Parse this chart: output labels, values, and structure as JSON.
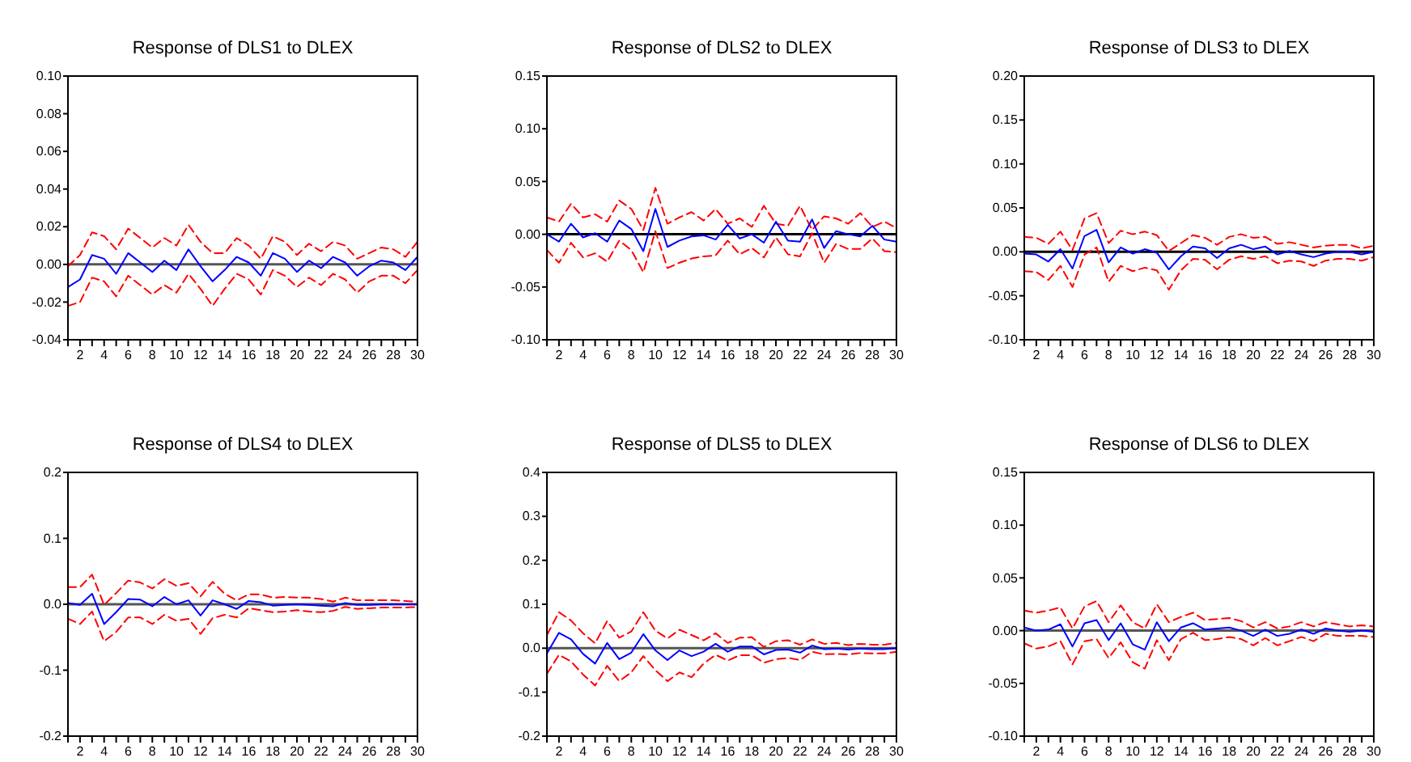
{
  "chart_data": [
    {
      "type": "line",
      "title": "Response of DLS1 to DLEX",
      "x": [
        1,
        2,
        3,
        4,
        5,
        6,
        7,
        8,
        9,
        10,
        11,
        12,
        13,
        14,
        15,
        16,
        17,
        18,
        19,
        20,
        21,
        22,
        23,
        24,
        25,
        26,
        27,
        28,
        29,
        30
      ],
      "xlim": [
        1,
        30
      ],
      "xticks": [
        {
          "value": 1,
          "label": null
        },
        2,
        {
          "value": 3,
          "label": null
        },
        4,
        {
          "value": 5,
          "label": null
        },
        6,
        {
          "value": 7,
          "label": null
        },
        8,
        {
          "value": 9,
          "label": null
        },
        10,
        {
          "value": 11,
          "label": null
        },
        12,
        {
          "value": 13,
          "label": null
        },
        14,
        {
          "value": 15,
          "label": null
        },
        16,
        {
          "value": 17,
          "label": null
        },
        18,
        {
          "value": 19,
          "label": null
        },
        20,
        {
          "value": 21,
          "label": null
        },
        22,
        {
          "value": 23,
          "label": null
        },
        24,
        {
          "value": 25,
          "label": null
        },
        26,
        {
          "value": 27,
          "label": null
        },
        28,
        {
          "value": 29,
          "label": null
        },
        30
      ],
      "ylim": [
        -0.04,
        0.1
      ],
      "yticks": [
        {
          "value": -0.04,
          "label": "-0.04"
        },
        {
          "value": -0.02,
          "label": "-0.02"
        },
        {
          "value": 0,
          "label": "0.00"
        },
        {
          "value": 0.02,
          "label": "0.02"
        },
        {
          "value": 0.04,
          "label": "0.04"
        },
        {
          "value": 0.06,
          "label": "0.06"
        },
        {
          "value": 0.08,
          "label": "0.08"
        },
        {
          "value": 0.1,
          "label": "0.10"
        }
      ],
      "ref_lines": [
        {
          "axis": "y",
          "value": 0,
          "color": "#555555"
        }
      ],
      "series": [
        {
          "color": "#ff0000",
          "line_style": "dashed",
          "values": [
            -0.001,
            0.005,
            0.017,
            0.015,
            0.008,
            0.019,
            0.014,
            0.009,
            0.014,
            0.01,
            0.021,
            0.012,
            0.006,
            0.006,
            0.014,
            0.01,
            0.003,
            0.015,
            0.012,
            0.005,
            0.011,
            0.007,
            0.012,
            0.01,
            0.003,
            0.006,
            0.009,
            0.008,
            0.004,
            0.012
          ]
        },
        {
          "color": "#ff0000",
          "line_style": "dashed",
          "values": [
            -0.022,
            -0.02,
            -0.007,
            -0.009,
            -0.017,
            -0.006,
            -0.011,
            -0.016,
            -0.011,
            -0.015,
            -0.005,
            -0.013,
            -0.022,
            -0.013,
            -0.005,
            -0.008,
            -0.016,
            -0.003,
            -0.006,
            -0.012,
            -0.007,
            -0.011,
            -0.005,
            -0.008,
            -0.015,
            -0.009,
            -0.006,
            -0.006,
            -0.01,
            -0.003
          ]
        },
        {
          "color": "#0000ff",
          "line_style": "solid",
          "values": [
            -0.012,
            -0.008,
            0.005,
            0.003,
            -0.005,
            0.006,
            0.001,
            -0.004,
            0.002,
            -0.003,
            0.008,
            -0.001,
            -0.009,
            -0.003,
            0.004,
            0.001,
            -0.006,
            0.006,
            0.003,
            -0.004,
            0.002,
            -0.002,
            0.004,
            0.001,
            -0.006,
            -0.001,
            0.002,
            0.001,
            -0.003,
            0.004
          ]
        }
      ]
    },
    {
      "type": "line",
      "title": "Response of DLS2 to DLEX",
      "x": [
        1,
        2,
        3,
        4,
        5,
        6,
        7,
        8,
        9,
        10,
        11,
        12,
        13,
        14,
        15,
        16,
        17,
        18,
        19,
        20,
        21,
        22,
        23,
        24,
        25,
        26,
        27,
        28,
        29,
        30
      ],
      "xlim": [
        1,
        30
      ],
      "xticks": [
        {
          "value": 1,
          "label": null
        },
        2,
        {
          "value": 3,
          "label": null
        },
        4,
        {
          "value": 5,
          "label": null
        },
        6,
        {
          "value": 7,
          "label": null
        },
        8,
        {
          "value": 9,
          "label": null
        },
        10,
        {
          "value": 11,
          "label": null
        },
        12,
        {
          "value": 13,
          "label": null
        },
        14,
        {
          "value": 15,
          "label": null
        },
        16,
        {
          "value": 17,
          "label": null
        },
        18,
        {
          "value": 19,
          "label": null
        },
        20,
        {
          "value": 21,
          "label": null
        },
        22,
        {
          "value": 23,
          "label": null
        },
        24,
        {
          "value": 25,
          "label": null
        },
        26,
        {
          "value": 27,
          "label": null
        },
        28,
        {
          "value": 29,
          "label": null
        },
        30
      ],
      "ylim": [
        -0.1,
        0.15
      ],
      "yticks": [
        {
          "value": -0.1,
          "label": "-0.10"
        },
        {
          "value": -0.05,
          "label": "-0.05"
        },
        {
          "value": 0,
          "label": "0.00"
        },
        {
          "value": 0.05,
          "label": "0.05"
        },
        {
          "value": 0.1,
          "label": "0.10"
        },
        {
          "value": 0.15,
          "label": "0.15"
        }
      ],
      "ref_lines": [
        {
          "axis": "y",
          "value": 0,
          "color": "#000000"
        }
      ],
      "series": [
        {
          "color": "#ff0000",
          "line_style": "dashed",
          "values": [
            0.016,
            0.012,
            0.029,
            0.016,
            0.019,
            0.012,
            0.032,
            0.024,
            0.004,
            0.044,
            0.01,
            0.016,
            0.021,
            0.013,
            0.024,
            0.01,
            0.015,
            0.007,
            0.027,
            0.01,
            0.008,
            0.027,
            0.004,
            0.017,
            0.015,
            0.01,
            0.02,
            0.007,
            0.012,
            0.006
          ]
        },
        {
          "color": "#ff0000",
          "line_style": "dashed",
          "values": [
            -0.015,
            -0.027,
            -0.008,
            -0.022,
            -0.018,
            -0.026,
            -0.006,
            -0.015,
            -0.036,
            0.003,
            -0.032,
            -0.027,
            -0.023,
            -0.021,
            -0.02,
            -0.006,
            -0.019,
            -0.013,
            -0.022,
            -0.003,
            -0.019,
            -0.021,
            0.001,
            -0.027,
            -0.009,
            -0.014,
            -0.014,
            -0.004,
            -0.016,
            -0.017
          ]
        },
        {
          "color": "#0000ff",
          "line_style": "solid",
          "values": [
            0.0,
            -0.007,
            0.01,
            -0.003,
            0.001,
            -0.007,
            0.013,
            0.005,
            -0.016,
            0.024,
            -0.012,
            -0.006,
            -0.002,
            -0.001,
            -0.005,
            0.009,
            -0.004,
            0.0,
            -0.008,
            0.012,
            -0.006,
            -0.007,
            0.014,
            -0.013,
            0.003,
            0.0,
            -0.002,
            0.008,
            -0.005,
            -0.007
          ]
        }
      ]
    },
    {
      "type": "line",
      "title": "Response of DLS3 to DLEX",
      "x": [
        1,
        2,
        3,
        4,
        5,
        6,
        7,
        8,
        9,
        10,
        11,
        12,
        13,
        14,
        15,
        16,
        17,
        18,
        19,
        20,
        21,
        22,
        23,
        24,
        25,
        26,
        27,
        28,
        29,
        30
      ],
      "xlim": [
        1,
        30
      ],
      "xticks": [
        {
          "value": 1,
          "label": null
        },
        2,
        {
          "value": 3,
          "label": null
        },
        4,
        {
          "value": 5,
          "label": null
        },
        6,
        {
          "value": 7,
          "label": null
        },
        8,
        {
          "value": 9,
          "label": null
        },
        10,
        {
          "value": 11,
          "label": null
        },
        12,
        {
          "value": 13,
          "label": null
        },
        14,
        {
          "value": 15,
          "label": null
        },
        16,
        {
          "value": 17,
          "label": null
        },
        18,
        {
          "value": 19,
          "label": null
        },
        20,
        {
          "value": 21,
          "label": null
        },
        22,
        {
          "value": 23,
          "label": null
        },
        24,
        {
          "value": 25,
          "label": null
        },
        26,
        {
          "value": 27,
          "label": null
        },
        28,
        {
          "value": 29,
          "label": null
        },
        30
      ],
      "ylim": [
        -0.1,
        0.2
      ],
      "yticks": [
        {
          "value": -0.1,
          "label": "-0.10"
        },
        {
          "value": -0.05,
          "label": "-0.05"
        },
        {
          "value": 0,
          "label": "0.00"
        },
        {
          "value": 0.05,
          "label": "0.05"
        },
        {
          "value": 0.1,
          "label": "0.10"
        },
        {
          "value": 0.15,
          "label": "0.15"
        },
        {
          "value": 0.2,
          "label": "0.20"
        }
      ],
      "ref_lines": [
        {
          "axis": "y",
          "value": 0,
          "color": "#000000"
        }
      ],
      "series": [
        {
          "color": "#ff0000",
          "line_style": "dashed",
          "values": [
            0.017,
            0.016,
            0.009,
            0.023,
            0.002,
            0.038,
            0.044,
            0.01,
            0.024,
            0.02,
            0.023,
            0.019,
            0.001,
            0.01,
            0.019,
            0.016,
            0.008,
            0.017,
            0.02,
            0.016,
            0.017,
            0.009,
            0.011,
            0.008,
            0.005,
            0.007,
            0.008,
            0.008,
            0.004,
            0.007
          ]
        },
        {
          "color": "#ff0000",
          "line_style": "dashed",
          "values": [
            -0.022,
            -0.023,
            -0.032,
            -0.016,
            -0.04,
            -0.003,
            0.005,
            -0.034,
            -0.016,
            -0.022,
            -0.018,
            -0.021,
            -0.043,
            -0.021,
            -0.008,
            -0.009,
            -0.02,
            -0.009,
            -0.005,
            -0.008,
            -0.005,
            -0.013,
            -0.01,
            -0.011,
            -0.016,
            -0.01,
            -0.008,
            -0.008,
            -0.01,
            -0.006
          ]
        },
        {
          "color": "#0000ff",
          "line_style": "solid",
          "values": [
            -0.002,
            -0.003,
            -0.011,
            0.003,
            -0.019,
            0.018,
            0.025,
            -0.012,
            0.005,
            -0.002,
            0.003,
            -0.001,
            -0.02,
            -0.005,
            0.006,
            0.004,
            -0.007,
            0.004,
            0.008,
            0.003,
            0.006,
            -0.003,
            0.001,
            -0.003,
            -0.006,
            -0.002,
            0.0,
            0.0,
            -0.003,
            0.0
          ]
        }
      ]
    },
    {
      "type": "line",
      "title": "Response of DLS4 to DLEX",
      "x": [
        1,
        2,
        3,
        4,
        5,
        6,
        7,
        8,
        9,
        10,
        11,
        12,
        13,
        14,
        15,
        16,
        17,
        18,
        19,
        20,
        21,
        22,
        23,
        24,
        25,
        26,
        27,
        28,
        29,
        30
      ],
      "xlim": [
        1,
        30
      ],
      "xticks": [
        {
          "value": 1,
          "label": null
        },
        2,
        {
          "value": 3,
          "label": null
        },
        4,
        {
          "value": 5,
          "label": null
        },
        6,
        {
          "value": 7,
          "label": null
        },
        8,
        {
          "value": 9,
          "label": null
        },
        10,
        {
          "value": 11,
          "label": null
        },
        12,
        {
          "value": 13,
          "label": null
        },
        14,
        {
          "value": 15,
          "label": null
        },
        16,
        {
          "value": 17,
          "label": null
        },
        18,
        {
          "value": 19,
          "label": null
        },
        20,
        {
          "value": 21,
          "label": null
        },
        22,
        {
          "value": 23,
          "label": null
        },
        24,
        {
          "value": 25,
          "label": null
        },
        26,
        {
          "value": 27,
          "label": null
        },
        28,
        {
          "value": 29,
          "label": null
        },
        30
      ],
      "ylim": [
        -0.2,
        0.2
      ],
      "yticks": [
        {
          "value": -0.2,
          "label": "-0.2"
        },
        {
          "value": -0.1,
          "label": "-0.1"
        },
        {
          "value": 0,
          "label": "0.0"
        },
        {
          "value": 0.1,
          "label": "0.1"
        },
        {
          "value": 0.2,
          "label": "0.2"
        }
      ],
      "ref_lines": [
        {
          "axis": "y",
          "value": 0,
          "color": "#555555"
        }
      ],
      "series": [
        {
          "color": "#ff0000",
          "line_style": "dashed",
          "values": [
            0.026,
            0.026,
            0.045,
            -0.001,
            0.017,
            0.036,
            0.033,
            0.024,
            0.038,
            0.028,
            0.032,
            0.012,
            0.034,
            0.016,
            0.006,
            0.015,
            0.015,
            0.01,
            0.011,
            0.01,
            0.01,
            0.008,
            0.004,
            0.01,
            0.006,
            0.006,
            0.006,
            0.006,
            0.005,
            0.004
          ]
        },
        {
          "color": "#ff0000",
          "line_style": "dashed",
          "values": [
            -0.022,
            -0.03,
            -0.011,
            -0.056,
            -0.042,
            -0.02,
            -0.02,
            -0.03,
            -0.016,
            -0.025,
            -0.022,
            -0.045,
            -0.021,
            -0.016,
            -0.02,
            -0.006,
            -0.009,
            -0.012,
            -0.011,
            -0.009,
            -0.011,
            -0.012,
            -0.01,
            -0.004,
            -0.007,
            -0.006,
            -0.005,
            -0.005,
            -0.005,
            -0.004
          ]
        },
        {
          "color": "#0000ff",
          "line_style": "solid",
          "values": [
            0.002,
            -0.001,
            0.016,
            -0.03,
            -0.012,
            0.008,
            0.007,
            -0.003,
            0.011,
            0.0,
            0.006,
            -0.017,
            0.006,
            0.0,
            -0.007,
            0.005,
            0.003,
            -0.002,
            -0.001,
            0.0,
            -0.001,
            -0.002,
            -0.003,
            0.002,
            -0.001,
            -0.001,
            0.0,
            0.0,
            0.0,
            0.0
          ]
        }
      ]
    },
    {
      "type": "line",
      "title": "Response of DLS5 to DLEX",
      "x": [
        1,
        2,
        3,
        4,
        5,
        6,
        7,
        8,
        9,
        10,
        11,
        12,
        13,
        14,
        15,
        16,
        17,
        18,
        19,
        20,
        21,
        22,
        23,
        24,
        25,
        26,
        27,
        28,
        29,
        30
      ],
      "xlim": [
        1,
        30
      ],
      "xticks": [
        {
          "value": 1,
          "label": null
        },
        2,
        {
          "value": 3,
          "label": null
        },
        4,
        {
          "value": 5,
          "label": null
        },
        6,
        {
          "value": 7,
          "label": null
        },
        8,
        {
          "value": 9,
          "label": null
        },
        10,
        {
          "value": 11,
          "label": null
        },
        12,
        {
          "value": 13,
          "label": null
        },
        14,
        {
          "value": 15,
          "label": null
        },
        16,
        {
          "value": 17,
          "label": null
        },
        18,
        {
          "value": 19,
          "label": null
        },
        20,
        {
          "value": 21,
          "label": null
        },
        22,
        {
          "value": 23,
          "label": null
        },
        24,
        {
          "value": 25,
          "label": null
        },
        26,
        {
          "value": 27,
          "label": null
        },
        28,
        {
          "value": 29,
          "label": null
        },
        30
      ],
      "ylim": [
        -0.2,
        0.4
      ],
      "yticks": [
        {
          "value": -0.2,
          "label": "-0.2"
        },
        {
          "value": -0.1,
          "label": "-0.1"
        },
        {
          "value": 0,
          "label": "0.0"
        },
        {
          "value": 0.1,
          "label": "0.1"
        },
        {
          "value": 0.2,
          "label": "0.2"
        },
        {
          "value": 0.3,
          "label": "0.3"
        },
        {
          "value": 0.4,
          "label": "0.4"
        }
      ],
      "ref_lines": [
        {
          "axis": "y",
          "value": 0,
          "color": "#555555"
        }
      ],
      "series": [
        {
          "color": "#ff0000",
          "line_style": "dashed",
          "values": [
            0.03,
            0.082,
            0.063,
            0.034,
            0.011,
            0.062,
            0.024,
            0.038,
            0.082,
            0.04,
            0.022,
            0.042,
            0.03,
            0.018,
            0.034,
            0.012,
            0.024,
            0.025,
            0.003,
            0.016,
            0.018,
            0.008,
            0.02,
            0.01,
            0.012,
            0.007,
            0.01,
            0.008,
            0.008,
            0.012
          ]
        },
        {
          "color": "#ff0000",
          "line_style": "dashed",
          "values": [
            -0.058,
            -0.015,
            -0.03,
            -0.06,
            -0.085,
            -0.04,
            -0.075,
            -0.055,
            -0.018,
            -0.05,
            -0.075,
            -0.055,
            -0.066,
            -0.035,
            -0.015,
            -0.028,
            -0.016,
            -0.016,
            -0.033,
            -0.025,
            -0.022,
            -0.027,
            -0.008,
            -0.014,
            -0.013,
            -0.014,
            -0.011,
            -0.012,
            -0.012,
            -0.008
          ]
        },
        {
          "color": "#0000ff",
          "line_style": "solid",
          "values": [
            -0.012,
            0.035,
            0.02,
            -0.013,
            -0.035,
            0.012,
            -0.025,
            -0.01,
            0.032,
            -0.005,
            -0.027,
            -0.005,
            -0.018,
            -0.008,
            0.01,
            -0.008,
            0.004,
            0.004,
            -0.014,
            -0.004,
            -0.003,
            -0.01,
            0.006,
            -0.002,
            -0.001,
            -0.003,
            -0.001,
            -0.002,
            -0.002,
            0.0
          ]
        }
      ]
    },
    {
      "type": "line",
      "title": "Response of DLS6 to DLEX",
      "x": [
        1,
        2,
        3,
        4,
        5,
        6,
        7,
        8,
        9,
        10,
        11,
        12,
        13,
        14,
        15,
        16,
        17,
        18,
        19,
        20,
        21,
        22,
        23,
        24,
        25,
        26,
        27,
        28,
        29,
        30
      ],
      "xlim": [
        1,
        30
      ],
      "xticks": [
        {
          "value": 1,
          "label": null
        },
        2,
        {
          "value": 3,
          "label": null
        },
        4,
        {
          "value": 5,
          "label": null
        },
        6,
        {
          "value": 7,
          "label": null
        },
        8,
        {
          "value": 9,
          "label": null
        },
        10,
        {
          "value": 11,
          "label": null
        },
        12,
        {
          "value": 13,
          "label": null
        },
        14,
        {
          "value": 15,
          "label": null
        },
        16,
        {
          "value": 17,
          "label": null
        },
        18,
        {
          "value": 19,
          "label": null
        },
        20,
        {
          "value": 21,
          "label": null
        },
        22,
        {
          "value": 23,
          "label": null
        },
        24,
        {
          "value": 25,
          "label": null
        },
        26,
        {
          "value": 27,
          "label": null
        },
        28,
        {
          "value": 29,
          "label": null
        },
        30
      ],
      "ylim": [
        -0.1,
        0.15
      ],
      "yticks": [
        {
          "value": -0.1,
          "label": "-0.10"
        },
        {
          "value": -0.05,
          "label": "-0.05"
        },
        {
          "value": 0,
          "label": "0.00"
        },
        {
          "value": 0.05,
          "label": "0.05"
        },
        {
          "value": 0.1,
          "label": "0.10"
        },
        {
          "value": 0.15,
          "label": "0.15"
        }
      ],
      "ref_lines": [
        {
          "axis": "y",
          "value": 0,
          "color": "#555555"
        }
      ],
      "series": [
        {
          "color": "#ff0000",
          "line_style": "dashed",
          "values": [
            0.019,
            0.017,
            0.019,
            0.022,
            0.002,
            0.023,
            0.028,
            0.008,
            0.024,
            0.008,
            0.002,
            0.025,
            0.008,
            0.013,
            0.017,
            0.01,
            0.011,
            0.012,
            0.009,
            0.003,
            0.008,
            0.002,
            0.004,
            0.008,
            0.004,
            0.008,
            0.006,
            0.004,
            0.005,
            0.004
          ]
        },
        {
          "color": "#ff0000",
          "line_style": "dashed",
          "values": [
            -0.012,
            -0.017,
            -0.015,
            -0.01,
            -0.032,
            -0.01,
            -0.008,
            -0.026,
            -0.011,
            -0.03,
            -0.036,
            -0.009,
            -0.028,
            -0.008,
            -0.002,
            -0.009,
            -0.008,
            -0.006,
            -0.008,
            -0.014,
            -0.007,
            -0.014,
            -0.01,
            -0.006,
            -0.01,
            -0.003,
            -0.005,
            -0.005,
            -0.005,
            -0.006
          ]
        },
        {
          "color": "#0000ff",
          "line_style": "solid",
          "values": [
            0.003,
            0.0,
            0.001,
            0.006,
            -0.015,
            0.007,
            0.01,
            -0.009,
            0.007,
            -0.013,
            -0.018,
            0.008,
            -0.01,
            0.003,
            0.007,
            0.001,
            0.002,
            0.003,
            0.0,
            -0.005,
            0.001,
            -0.005,
            -0.003,
            0.001,
            -0.003,
            0.002,
            0.0,
            -0.001,
            0.0,
            -0.001
          ]
        }
      ]
    }
  ]
}
